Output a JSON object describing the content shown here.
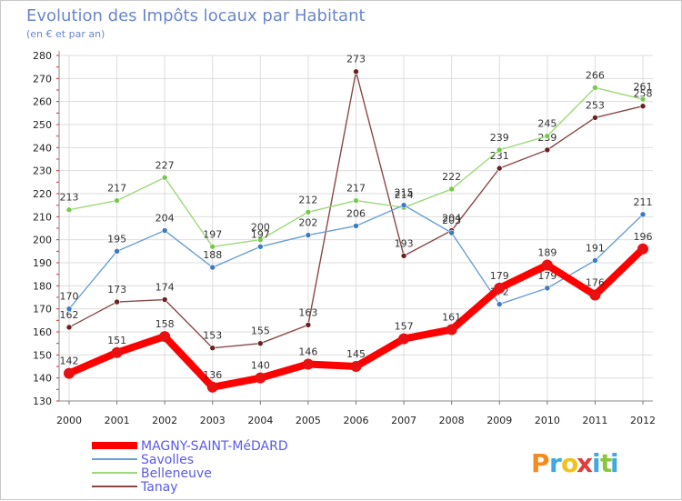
{
  "chart_data": {
    "type": "line",
    "title": "Evolution des Impôts locaux par Habitant",
    "subtitle": "(en € et par an)",
    "xlabel": "",
    "ylabel": "",
    "ylim": [
      130,
      280
    ],
    "yticks": [
      "130",
      "140",
      "150",
      "160",
      "170",
      "180",
      "190",
      "200",
      "210",
      "220",
      "230",
      "240",
      "250",
      "260",
      "270",
      "280"
    ],
    "categories": [
      "2000",
      "2001",
      "2002",
      "2003",
      "2004",
      "2005",
      "2006",
      "2007",
      "2008",
      "2009",
      "2010",
      "2011",
      "2012"
    ],
    "grid": true,
    "legend_position": "bottom-left",
    "series": [
      {
        "name": "MAGNY-SAINT-MéDARD",
        "color": "#ff0000",
        "marker": "#e81010",
        "values": [
          142,
          151,
          158,
          136,
          140,
          146,
          145,
          157,
          161,
          179,
          189,
          176,
          196
        ],
        "labels": [
          "142",
          "151",
          "158",
          "136",
          "140",
          "146",
          "145",
          "157",
          "161",
          "179",
          "189",
          "176",
          "196"
        ]
      },
      {
        "name": "Savolles",
        "color": "#6a9fd4",
        "marker": "#3a7bc0",
        "values": [
          170,
          195,
          204,
          188,
          197,
          202,
          206,
          215,
          203,
          172,
          179,
          191,
          211
        ],
        "labels": [
          "170",
          "195",
          "204",
          "188",
          "197",
          "202",
          "206",
          "215",
          "203",
          "172",
          "179",
          "191",
          "211"
        ]
      },
      {
        "name": "Belleneuve",
        "color": "#9ed878",
        "marker": "#78c850",
        "values": [
          213,
          217,
          227,
          197,
          200,
          212,
          217,
          214,
          222,
          239,
          245,
          266,
          261
        ],
        "labels": [
          "213",
          "217",
          "227",
          "197",
          "200",
          "212",
          "217",
          "214",
          "222",
          "239",
          "245",
          "266",
          "261"
        ]
      },
      {
        "name": "Tanay",
        "color": "#8a4848",
        "marker": "#6a2020",
        "values": [
          162,
          173,
          174,
          153,
          155,
          163,
          273,
          193,
          204,
          231,
          239,
          253,
          258
        ],
        "labels": [
          "162",
          "173",
          "174",
          "153",
          "155",
          "163",
          "273",
          "193",
          "204",
          "231",
          "239",
          "253",
          "258"
        ]
      }
    ]
  },
  "logo": {
    "text": "Proxiti",
    "letters": [
      "P",
      "r",
      "o",
      "x",
      "i",
      "t",
      "i"
    ],
    "colors": [
      "#f28c1e",
      "#3fa9e0",
      "#f2c21e",
      "#e03c3c",
      "#3fa9e0",
      "#8cc63f",
      "#3fa9e0"
    ]
  }
}
